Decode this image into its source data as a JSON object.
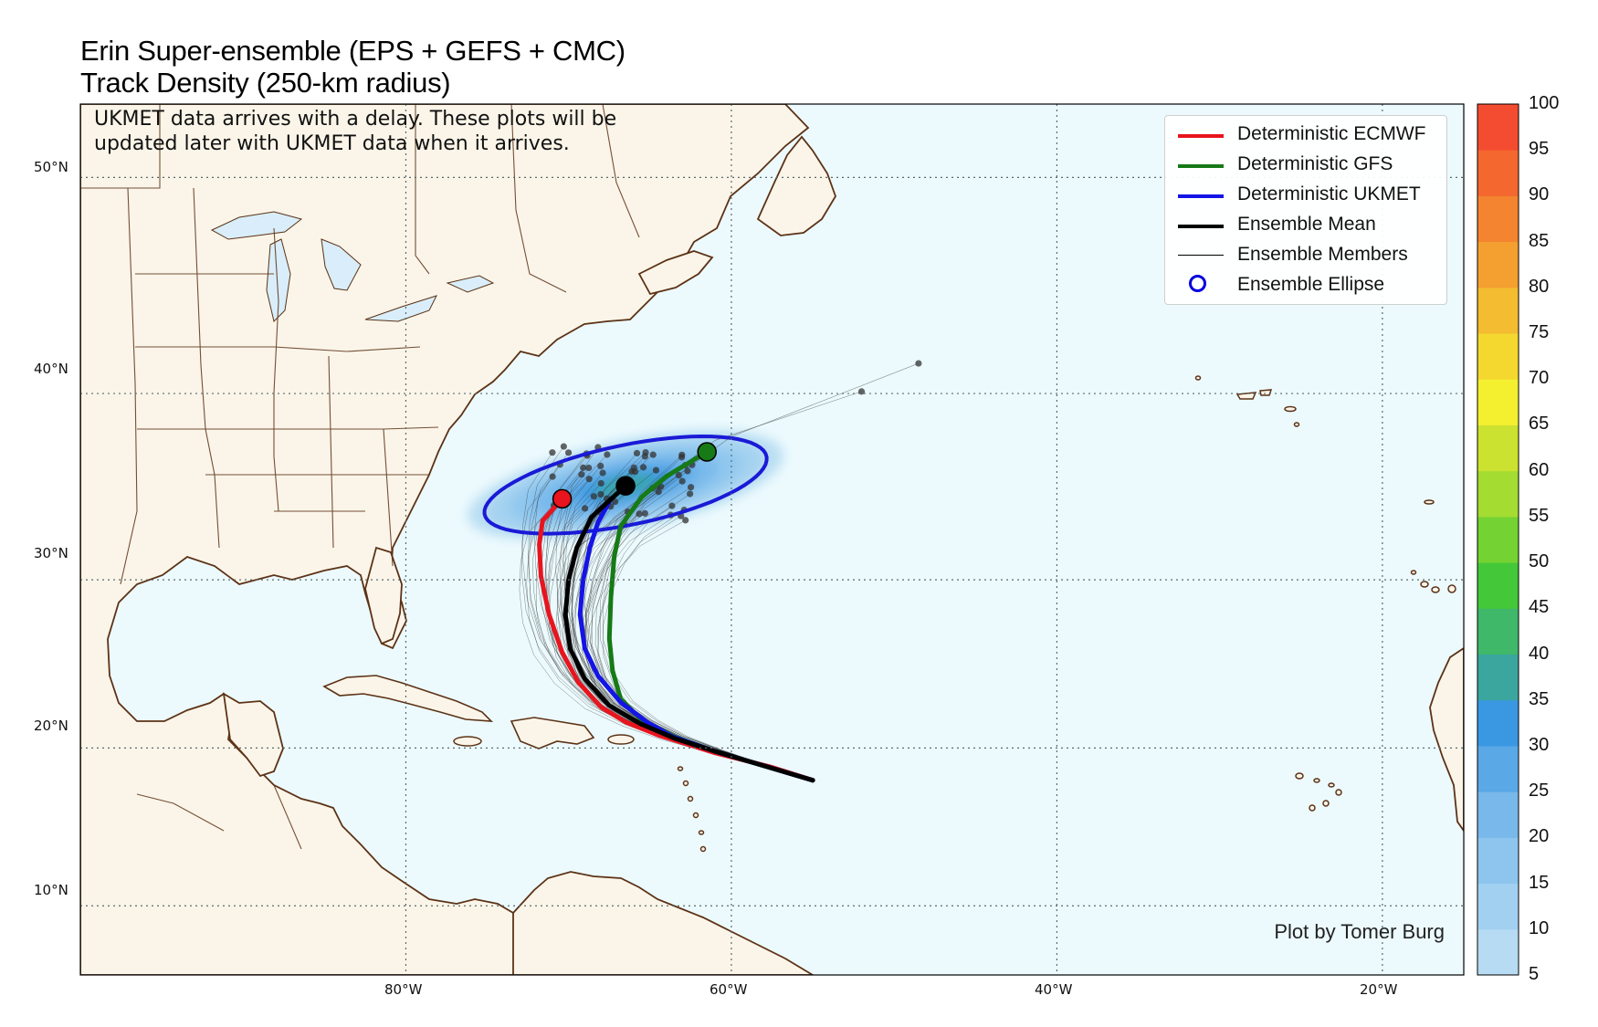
{
  "title": {
    "line1": "Erin Super-ensemble (EPS + GEFS + CMC)",
    "line2": "Track Density (250-km radius)"
  },
  "note": {
    "line1": "UKMET data arrives with a delay. These plots will be",
    "line2": "updated later with UKMET data when it arrives."
  },
  "credit": "Plot by Tomer Burg",
  "legend": [
    {
      "label": "Deterministic ECMWF",
      "color": "#e8141e",
      "kind": "thick"
    },
    {
      "label": "Deterministic GFS",
      "color": "#167a16",
      "kind": "thick"
    },
    {
      "label": "Deterministic UKMET",
      "color": "#1414e6",
      "kind": "thick"
    },
    {
      "label": "Ensemble Mean",
      "color": "#000000",
      "kind": "thick"
    },
    {
      "label": "Ensemble Members",
      "color": "#000000",
      "kind": "thin"
    },
    {
      "label": "Ensemble Ellipse",
      "color": "#0000dd",
      "kind": "circle"
    }
  ],
  "lat_labels": [
    "50°N",
    "40°N",
    "30°N",
    "20°N",
    "10°N"
  ],
  "lon_labels": [
    "80°W",
    "60°W",
    "40°W",
    "20°W"
  ],
  "colorbar": {
    "ticks": [
      "100",
      "95",
      "90",
      "85",
      "80",
      "75",
      "70",
      "65",
      "60",
      "55",
      "50",
      "45",
      "40",
      "35",
      "30",
      "25",
      "20",
      "15",
      "10",
      "5"
    ],
    "colors_low_to_high": [
      "#b6dbf2",
      "#a2d0f0",
      "#8ec5ee",
      "#78b8ea",
      "#5aa8e6",
      "#3a98e2",
      "#3aa69e",
      "#40b86a",
      "#44c83a",
      "#74d232",
      "#a4dc32",
      "#cce230",
      "#f4f030",
      "#f4d830",
      "#f4bc30",
      "#f4a030",
      "#f48430",
      "#f46830",
      "#f44c30",
      "#f23434"
    ]
  },
  "colors": {
    "ocean": "#ecfafd",
    "land": "#fbf5e9",
    "coast": "#5c3216",
    "ecmwf": "#e8141e",
    "gfs": "#167a16",
    "ukmet": "#1414e6",
    "mean": "#000000"
  },
  "map_data": {
    "extent": {
      "lon_min": -100,
      "lon_max": -15,
      "lat_min": 5.5,
      "lat_max": 53
    },
    "storm_start": {
      "lon": -55,
      "lat": 18
    },
    "tracks": {
      "ecmwf": [
        [
          -55,
          18
        ],
        [
          -57.5,
          18.8
        ],
        [
          -61,
          19.7
        ],
        [
          -64.5,
          20.8
        ],
        [
          -66.5,
          21.6
        ],
        [
          -68,
          22.5
        ],
        [
          -69.4,
          24
        ],
        [
          -70.4,
          25.8
        ],
        [
          -71.2,
          28
        ],
        [
          -71.7,
          30.2
        ],
        [
          -71.8,
          32
        ],
        [
          -71.6,
          33.3
        ],
        [
          -70.4,
          34.5
        ]
      ],
      "gfs": [
        [
          -55,
          18
        ],
        [
          -58,
          18.9
        ],
        [
          -61,
          19.8
        ],
        [
          -63.5,
          20.7
        ],
        [
          -65.5,
          21.7
        ],
        [
          -66.8,
          23
        ],
        [
          -67.3,
          24.7
        ],
        [
          -67.5,
          26.6
        ],
        [
          -67.4,
          29
        ],
        [
          -67.2,
          31.3
        ],
        [
          -66.8,
          33
        ],
        [
          -65.5,
          34.6
        ],
        [
          -64,
          35.7
        ],
        [
          -61.5,
          37
        ]
      ],
      "ukmet": [
        [
          -55,
          18
        ],
        [
          -58,
          18.9
        ],
        [
          -61,
          19.8
        ],
        [
          -63.6,
          20.7
        ],
        [
          -65.2,
          21.6
        ],
        [
          -66.8,
          22.8
        ],
        [
          -68.2,
          24.4
        ],
        [
          -69,
          26
        ],
        [
          -69.3,
          28
        ],
        [
          -69.1,
          30
        ],
        [
          -68.7,
          31.8
        ],
        [
          -68.2,
          33.2
        ],
        [
          -67.4,
          34.5
        ]
      ],
      "mean": [
        [
          -55,
          18
        ],
        [
          -58,
          18.9
        ],
        [
          -61,
          19.8
        ],
        [
          -63.5,
          20.6
        ],
        [
          -65.6,
          21.5
        ],
        [
          -67.5,
          22.6
        ],
        [
          -69,
          24.2
        ],
        [
          -69.9,
          26
        ],
        [
          -70.2,
          28
        ],
        [
          -70,
          30
        ],
        [
          -69.5,
          31.8
        ],
        [
          -68.6,
          33.5
        ],
        [
          -66.5,
          35.2
        ]
      ]
    },
    "ellipse": {
      "center_lon": -66.5,
      "center_lat": 35.2,
      "semi_major_deg": 8.8,
      "semi_minor_deg": 2.15,
      "tilt_deg": 10
    },
    "end_markers": [
      {
        "model": "ecmwf",
        "lon": -70.4,
        "lat": 34.5
      },
      {
        "model": "gfs",
        "lon": -61.5,
        "lat": 37
      },
      {
        "model": "mean",
        "lon": -66.5,
        "lat": 35.2
      }
    ]
  }
}
